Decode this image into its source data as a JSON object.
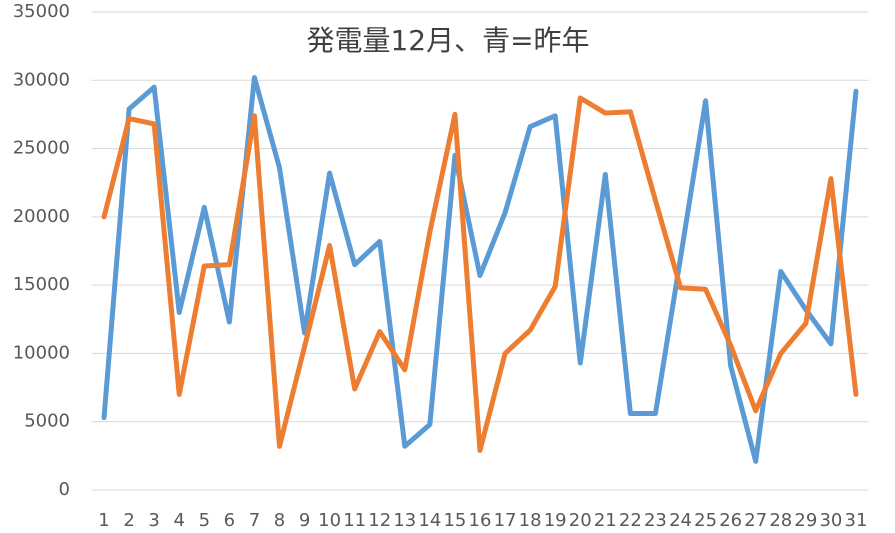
{
  "chart_data": {
    "type": "line",
    "title": "発電量12月、青=昨年",
    "categories": [
      "1",
      "2",
      "3",
      "4",
      "5",
      "6",
      "7",
      "8",
      "9",
      "10",
      "11",
      "12",
      "13",
      "14",
      "15",
      "16",
      "17",
      "18",
      "19",
      "20",
      "21",
      "22",
      "23",
      "24",
      "25",
      "26",
      "27",
      "28",
      "29",
      "30",
      "31"
    ],
    "series": [
      {
        "color": "#5b9bd5",
        "values": [
          5300,
          27900,
          29500,
          13000,
          20700,
          12300,
          30200,
          23600,
          11500,
          23200,
          16500,
          18200,
          3200,
          4800,
          24500,
          15700,
          20300,
          26600,
          27400,
          9300,
          23100,
          5600,
          5600,
          17000,
          28500,
          9100,
          2100,
          16000,
          13200,
          10700,
          29200
        ]
      },
      {
        "color": "#ed7d31",
        "values": [
          20000,
          27200,
          26800,
          7000,
          16400,
          16500,
          27400,
          3200,
          10500,
          17900,
          7400,
          11600,
          8800,
          18900,
          27500,
          2900,
          10000,
          11700,
          14900,
          28700,
          27600,
          27700,
          21200,
          14800,
          14700,
          10600,
          5800,
          10000,
          12200,
          22800,
          7000
        ]
      }
    ],
    "ylim": [
      0,
      35000
    ],
    "yticks": [
      0,
      5000,
      10000,
      15000,
      20000,
      25000,
      30000,
      35000
    ],
    "grid": true
  }
}
